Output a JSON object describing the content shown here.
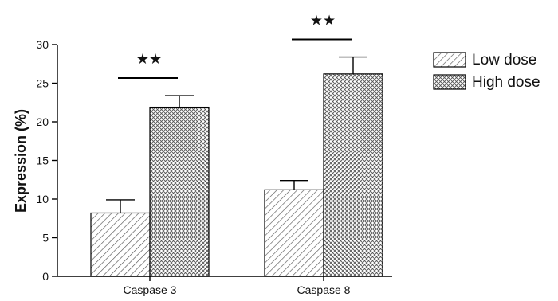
{
  "chart_data": {
    "type": "bar",
    "categories": [
      "Caspase 3",
      "Caspase 8"
    ],
    "series": [
      {
        "name": "Low dose",
        "values": [
          8.2,
          11.2
        ],
        "errors": [
          1.7,
          1.2
        ],
        "pattern": "diagonal-hatch"
      },
      {
        "name": "High dose",
        "values": [
          21.9,
          26.2
        ],
        "errors": [
          1.5,
          2.2
        ],
        "pattern": "crosshatch"
      }
    ],
    "title": "",
    "xlabel": "",
    "ylabel": "Expression (%)",
    "ylim": [
      0,
      30
    ],
    "yticks": [
      "0",
      "5",
      "10",
      "15",
      "20",
      "25",
      "30"
    ],
    "annotations": [
      {
        "category": "Caspase 3",
        "text": "★★"
      },
      {
        "category": "Caspase 8",
        "text": "★★"
      }
    ],
    "legend_position": "top-right",
    "grid": false,
    "colors": {
      "bar_fill": "#ffffff",
      "hatch": "#555555",
      "outline": "#000000"
    }
  }
}
